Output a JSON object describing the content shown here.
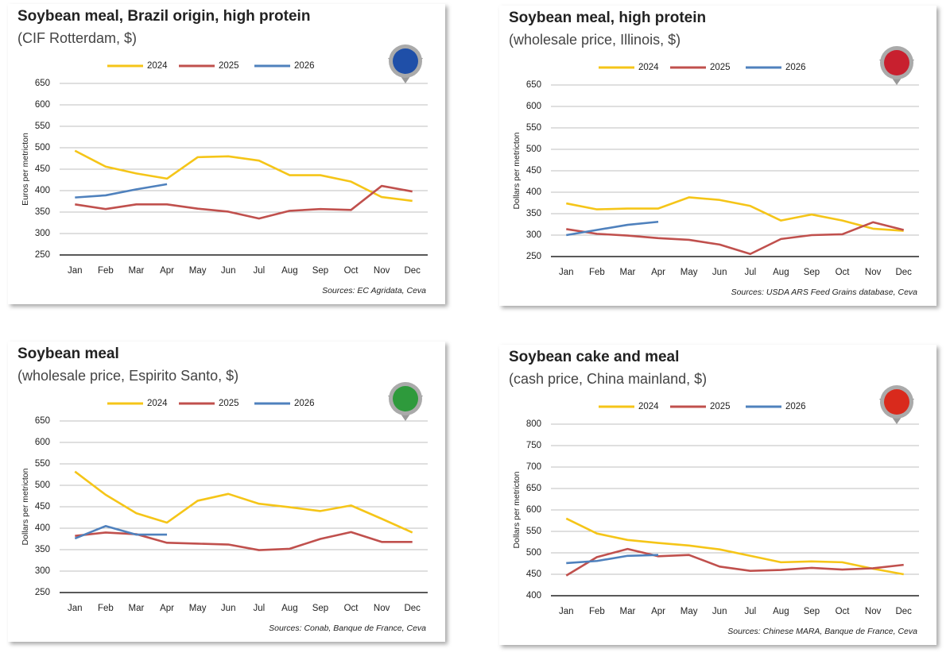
{
  "chart_data": [
    {
      "type": "line",
      "title": "Soybean meal, Brazil origin, high protein",
      "subtitle": "(CIF Rotterdam, $)",
      "y_label": "Euros per metricton",
      "source": "Sources: EC Agridata, Ceva",
      "categories": [
        "Jan",
        "Feb",
        "Mar",
        "Apr",
        "May",
        "Jun",
        "Jul",
        "Aug",
        "Sep",
        "Oct",
        "Nov",
        "Dec"
      ],
      "series": [
        {
          "name": "2024",
          "color": "#f5c518",
          "values": [
            493,
            456,
            440,
            428,
            478,
            480,
            470,
            436,
            436,
            421,
            385,
            376
          ]
        },
        {
          "name": "2025",
          "color": "#c0504d",
          "values": [
            368,
            357,
            368,
            368,
            358,
            351,
            335,
            353,
            357,
            355,
            411,
            398
          ]
        },
        {
          "name": "2026",
          "color": "#4f81bd",
          "values": [
            384,
            389,
            403,
            415,
            null,
            null,
            null,
            null,
            null,
            null,
            null,
            null
          ]
        }
      ],
      "ylim": [
        250,
        650
      ],
      "yticks": [
        250,
        300,
        350,
        400,
        450,
        500,
        550,
        600,
        650
      ],
      "grid": true
    },
    {
      "type": "line",
      "title": "Soybean meal, high protein",
      "subtitle": "(wholesale price, Illinois, $)",
      "y_label": "Dollars per metricton",
      "source": "Sources: USDA ARS Feed Grains database, Ceva",
      "categories": [
        "Jan",
        "Feb",
        "Mar",
        "Apr",
        "May",
        "Jun",
        "Jul",
        "Aug",
        "Sep",
        "Oct",
        "Nov",
        "Dec"
      ],
      "series": [
        {
          "name": "2024",
          "color": "#f5c518",
          "values": [
            374,
            360,
            362,
            362,
            388,
            382,
            368,
            334,
            348,
            334,
            315,
            310
          ]
        },
        {
          "name": "2025",
          "color": "#c0504d",
          "values": [
            314,
            303,
            299,
            293,
            289,
            278,
            256,
            291,
            300,
            302,
            330,
            312
          ]
        },
        {
          "name": "2026",
          "color": "#4f81bd",
          "values": [
            300,
            312,
            324,
            331,
            null,
            null,
            null,
            null,
            null,
            null,
            null,
            null
          ]
        }
      ],
      "ylim": [
        250,
        650
      ],
      "yticks": [
        250,
        300,
        350,
        400,
        450,
        500,
        550,
        600,
        650
      ],
      "grid": true
    },
    {
      "type": "line",
      "title": "Soybean meal",
      "subtitle": "(wholesale price, Espirito Santo, $)",
      "y_label": "Dollars per metricton",
      "source": "Sources: Conab, Banque de France, Ceva",
      "categories": [
        "Jan",
        "Feb",
        "Mar",
        "Apr",
        "May",
        "Jun",
        "Jul",
        "Aug",
        "Sep",
        "Oct",
        "Nov",
        "Dec"
      ],
      "series": [
        {
          "name": "2024",
          "color": "#f5c518",
          "values": [
            532,
            478,
            435,
            413,
            464,
            480,
            457,
            449,
            440,
            453,
            422,
            390
          ]
        },
        {
          "name": "2025",
          "color": "#c0504d",
          "values": [
            382,
            390,
            386,
            366,
            364,
            362,
            349,
            352,
            375,
            391,
            368,
            368
          ]
        },
        {
          "name": "2026",
          "color": "#4f81bd",
          "values": [
            376,
            405,
            385,
            385,
            null,
            null,
            null,
            null,
            null,
            null,
            null,
            null
          ]
        }
      ],
      "ylim": [
        250,
        650
      ],
      "yticks": [
        250,
        300,
        350,
        400,
        450,
        500,
        550,
        600,
        650
      ],
      "grid": true
    },
    {
      "type": "line",
      "title": "Soybean cake and meal",
      "subtitle": "(cash price, China mainland, $)",
      "y_label": "Dollars per metricton",
      "source": "Sources: Chinese MARA, Banque de France, Ceva",
      "categories": [
        "Jan",
        "Feb",
        "Mar",
        "Apr",
        "May",
        "Jun",
        "Jul",
        "Aug",
        "Sep",
        "Oct",
        "Nov",
        "Dec"
      ],
      "series": [
        {
          "name": "2024",
          "color": "#f5c518",
          "values": [
            580,
            545,
            530,
            523,
            517,
            508,
            493,
            478,
            480,
            478,
            463,
            450
          ]
        },
        {
          "name": "2025",
          "color": "#c0504d",
          "values": [
            447,
            490,
            509,
            492,
            495,
            468,
            458,
            460,
            465,
            461,
            464,
            472
          ]
        },
        {
          "name": "2026",
          "color": "#4f81bd",
          "values": [
            476,
            481,
            493,
            495,
            null,
            null,
            null,
            null,
            null,
            null,
            null,
            null
          ]
        }
      ],
      "ylim": [
        400,
        800
      ],
      "yticks": [
        400,
        450,
        500,
        550,
        600,
        650,
        700,
        750,
        800
      ],
      "grid": true
    }
  ]
}
